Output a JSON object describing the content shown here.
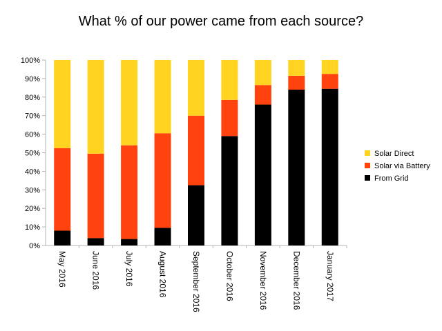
{
  "chart_data": {
    "type": "bar",
    "stacked": true,
    "title": "What % of our power came from each source?",
    "xlabel": "",
    "ylabel": "",
    "categories": [
      "May 2016",
      "June 2016",
      "July 2016",
      "August 2016",
      "September 2016",
      "October 2016",
      "November 2016",
      "December 2016",
      "January 2017"
    ],
    "series": [
      {
        "name": "From Grid",
        "color": "#000000",
        "values": [
          8,
          4,
          3.5,
          9.5,
          32.5,
          59,
          76,
          84,
          84.5
        ]
      },
      {
        "name": "Solar via Battery",
        "color": "#ff420e",
        "values": [
          44.5,
          45.5,
          50.5,
          51,
          37.5,
          19.5,
          10.5,
          7.5,
          8
        ]
      },
      {
        "name": "Solar Direct",
        "color": "#ffd320",
        "values": [
          47.5,
          50.5,
          46,
          39.5,
          30,
          21.5,
          13.5,
          8.5,
          7.5
        ]
      }
    ],
    "ylim": [
      0,
      100
    ],
    "ytick_values": [
      0,
      10,
      20,
      30,
      40,
      50,
      60,
      70,
      80,
      90,
      100
    ],
    "ytick_labels": [
      "0%",
      "10%",
      "20%",
      "30%",
      "40%",
      "50%",
      "60%",
      "70%",
      "80%",
      "90%",
      "100%"
    ],
    "legend_position": "right",
    "grid": false
  }
}
